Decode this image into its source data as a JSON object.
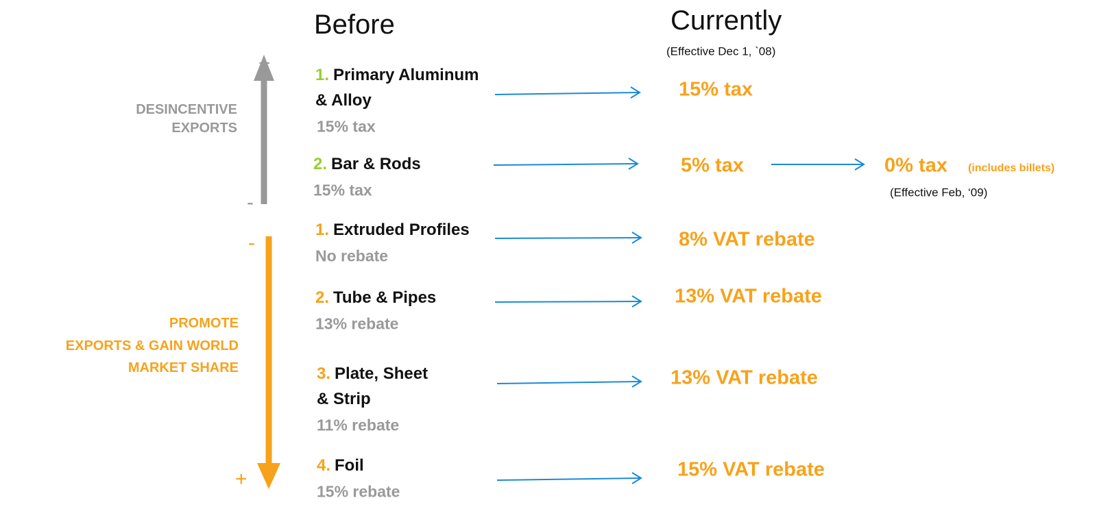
{
  "headers": {
    "before": "Before",
    "currently": "Currently",
    "currently_note": "(Effective Dec 1, `08)"
  },
  "left_labels": {
    "disincentive": [
      "DESINCENTIVE",
      "EXPORTS"
    ],
    "promote": [
      "PROMOTE",
      "EXPORTS & GAIN WORLD",
      "MARKET SHARE"
    ]
  },
  "axis_signs": {
    "tax_top": "+",
    "tax_bottom": "-",
    "rebate_top": "-",
    "rebate_bottom": "+"
  },
  "tax_items": [
    {
      "number": "1.",
      "name": [
        "Primary Aluminum",
        "& Alloy"
      ],
      "before": "15% tax",
      "current": "15% tax"
    },
    {
      "number": "2.",
      "name": [
        "Bar & Rods"
      ],
      "before": "15% tax",
      "current": "5% tax",
      "next": {
        "value": "0% tax",
        "note": "(includes billets)",
        "effective": "(Effective Feb, ‘09)"
      }
    }
  ],
  "rebate_items": [
    {
      "number": "1.",
      "name": [
        "Extruded Profiles"
      ],
      "before": "No rebate",
      "current": "8% VAT rebate"
    },
    {
      "number": "2.",
      "name": [
        "Tube & Pipes"
      ],
      "before": "13% rebate",
      "current": "13% VAT rebate"
    },
    {
      "number": "3.",
      "name": [
        "Plate, Sheet",
        "& Strip"
      ],
      "before": "11% rebate",
      "current": "13% VAT rebate"
    },
    {
      "number": "4.",
      "name": [
        "Foil"
      ],
      "before": "15% rebate",
      "current": "15% VAT rebate"
    }
  ]
}
